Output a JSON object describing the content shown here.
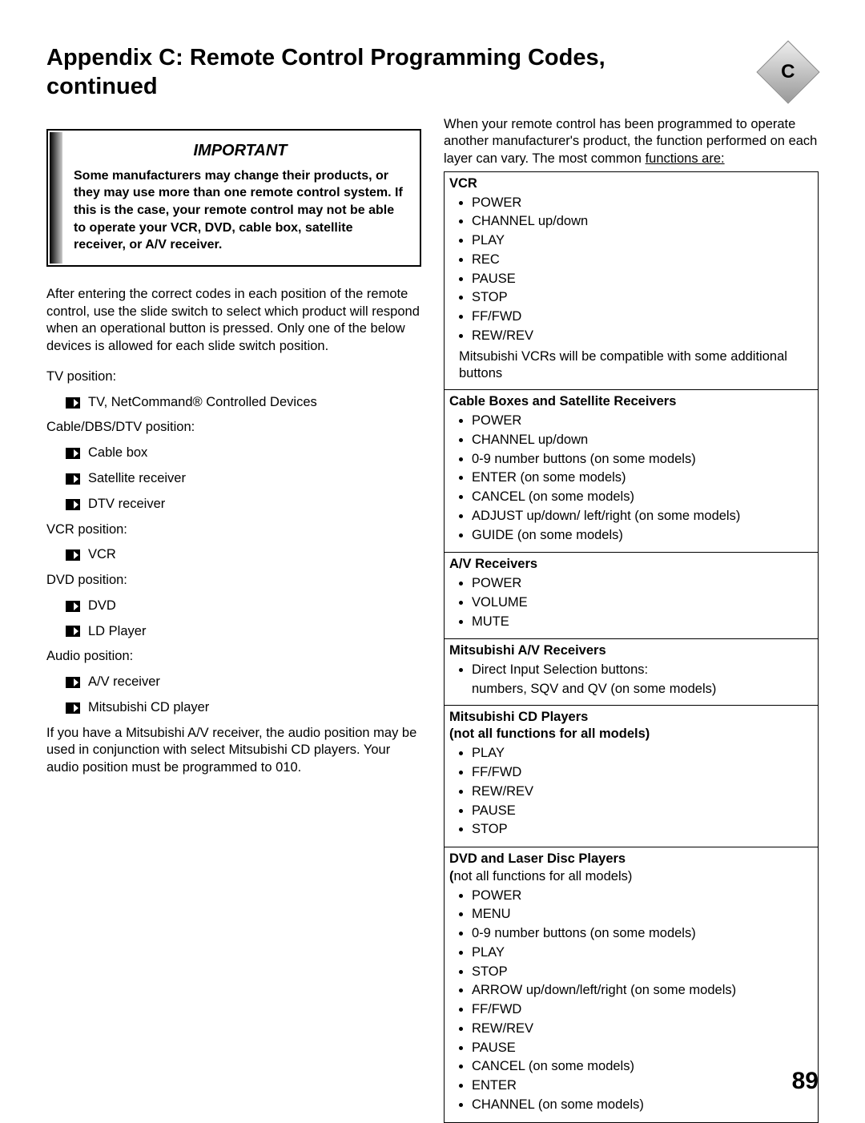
{
  "header": {
    "title": "Appendix C: Remote Control Programming Codes, continued",
    "badge_letter": "C"
  },
  "important": {
    "title": "IMPORTANT",
    "body": "Some manufacturers may change their products, or they may use more than one remote control system.  If this is the case, your remote control may not be able to operate your VCR, DVD, cable box, satellite receiver, or A/V receiver."
  },
  "left": {
    "para1": "After entering the correct codes in each position of the remote control, use the slide switch to select which product will respond when an operational button is pressed.  Only one of the below devices is allowed for each slide switch position.",
    "positions": [
      {
        "label": "TV position:",
        "items": [
          "TV, NetCommand® Controlled Devices"
        ]
      },
      {
        "label": "Cable/DBS/DTV position:",
        "items": [
          "Cable box",
          "Satellite receiver",
          "DTV receiver"
        ]
      },
      {
        "label": "VCR position:",
        "items": [
          "VCR"
        ]
      },
      {
        "label": "DVD position:",
        "items": [
          "DVD",
          "LD Player"
        ]
      },
      {
        "label": "Audio position:",
        "items": [
          "A/V receiver",
          "Mitsubishi CD player"
        ]
      }
    ],
    "para2": "If you have a Mitsubishi A/V receiver, the audio position may be used in conjunction with select Mitsubishi CD players.  Your audio position must be programmed to 010."
  },
  "right": {
    "intro_a": "When your remote control has been programmed to operate another manufacturer's product, the function performed on each layer can vary.  The most common ",
    "intro_b": "functions are:",
    "sections": [
      {
        "head": "VCR",
        "items": [
          "POWER",
          "CHANNEL up/down",
          "PLAY",
          "REC",
          "PAUSE",
          "STOP",
          "FF/FWD",
          "REW/REV"
        ],
        "note": "Mitsubishi VCRs will be compatible with some additional buttons"
      },
      {
        "head": "Cable Boxes and Satellite Receivers",
        "items": [
          "POWER",
          "CHANNEL up/down",
          "0-9 number buttons (on some models)",
          "ENTER (on some models)",
          "CANCEL (on some models)",
          "ADJUST up/down/ left/right (on some models)",
          "GUIDE (on some models)"
        ]
      },
      {
        "head": "A/V Receivers",
        "items": [
          "POWER",
          "VOLUME",
          "MUTE"
        ]
      },
      {
        "head": "Mitsubishi A/V Receivers",
        "lines": [
          "Direct Input Selection buttons:",
          "numbers, SQV and QV (on some models)"
        ]
      },
      {
        "head": "Mitsubishi CD Players",
        "head2": "(not all functions for all models)",
        "items": [
          "PLAY",
          "FF/FWD",
          "REW/REV",
          "PAUSE",
          "STOP"
        ]
      },
      {
        "head": "DVD and Laser Disc Players",
        "sub_paren": "(",
        "sub_rest": "not all functions for all models)",
        "items": [
          "POWER",
          "MENU",
          "0-9 number buttons (on some models)",
          "PLAY",
          "STOP",
          "ARROW up/down/left/right (on some models)",
          "FF/FWD",
          "REW/REV",
          "PAUSE",
          "CANCEL (on some models)",
          "ENTER",
          "CHANNEL (on some models)"
        ]
      }
    ]
  },
  "page_number": "89"
}
